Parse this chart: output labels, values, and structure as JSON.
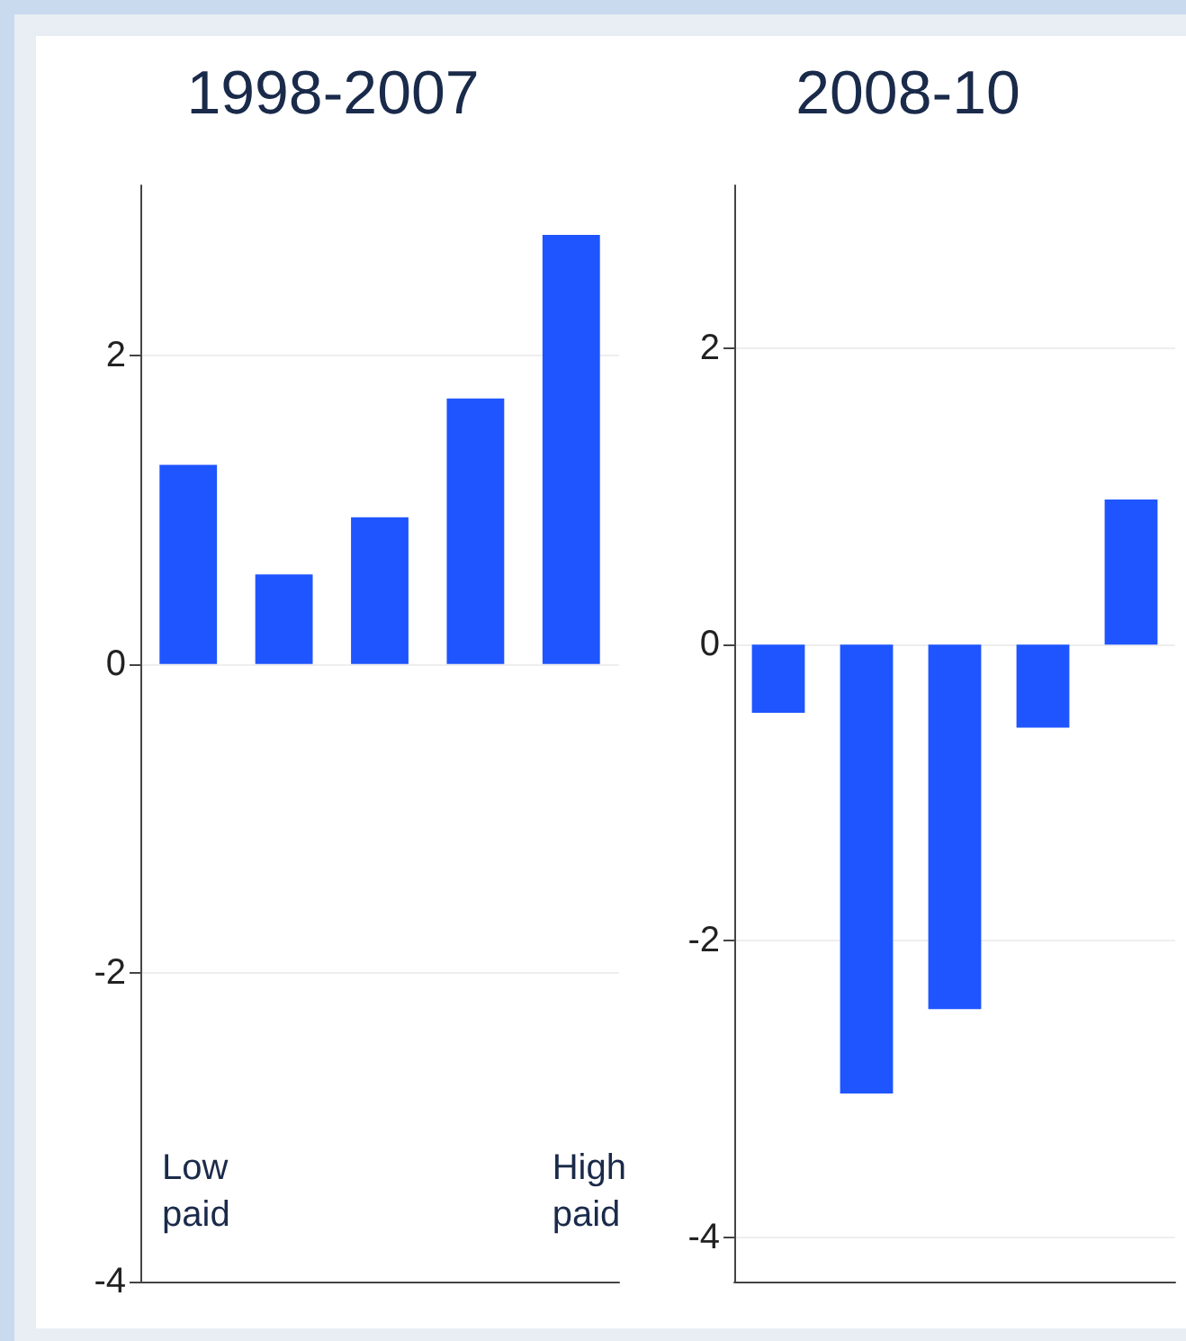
{
  "chart_data": [
    {
      "type": "bar",
      "title": "1998-2007",
      "categories": [
        null,
        null,
        null,
        null,
        null
      ],
      "series": [
        {
          "color": "#1f55ff",
          "values": [
            1.29,
            0.58,
            0.95,
            1.72,
            2.78
          ]
        }
      ],
      "ylim": [
        -4,
        3.1
      ],
      "yticks": [
        -4,
        -2,
        0,
        2
      ],
      "grid": "y",
      "annotations": [
        "Low\npaid",
        "High\npaid"
      ]
    },
    {
      "type": "bar",
      "title": "2008-10",
      "categories": [
        null,
        null,
        null,
        null,
        null
      ],
      "series": [
        {
          "color": "#1f55ff",
          "values": [
            -0.46,
            -3.03,
            -2.46,
            -0.56,
            0.98
          ]
        }
      ],
      "ylim": [
        -4.3,
        3.1
      ],
      "yticks": [
        -4,
        -2,
        0,
        2
      ],
      "grid": "y"
    }
  ]
}
